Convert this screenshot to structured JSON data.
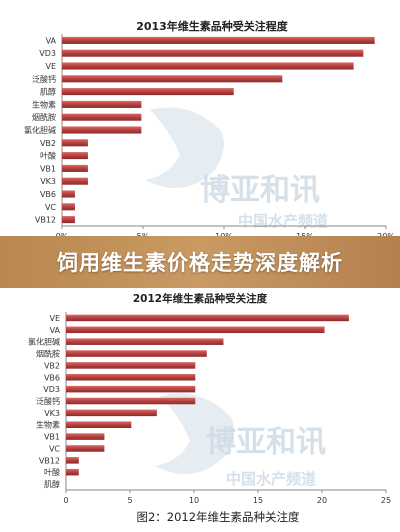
{
  "banner": {
    "title": "饲用维生素价格走势深度解析"
  },
  "watermark": {
    "brand_text": "博亚和讯",
    "site_text": "中国水产频道"
  },
  "chart_data": [
    {
      "type": "bar",
      "orientation": "horizontal",
      "title": "2013年维生素品种受关注程度",
      "caption": "",
      "categories": [
        "VA",
        "VD3",
        "VE",
        "泛酸钙",
        "肌醇",
        "生物素",
        "烟酰胺",
        "氯化胆碱",
        "VB2",
        "叶酸",
        "VB1",
        "VK3",
        "VB6",
        "VC",
        "VB12"
      ],
      "values": [
        19.3,
        18.6,
        18.0,
        13.6,
        10.6,
        4.9,
        4.9,
        4.9,
        1.6,
        1.6,
        1.6,
        1.6,
        0.8,
        0.8,
        0.8
      ],
      "xlim": [
        0,
        20
      ],
      "xticks": [
        "0%",
        "5%",
        "10%",
        "15%",
        "20%"
      ],
      "bar_color": "#b5403f",
      "legend": "none"
    },
    {
      "type": "bar",
      "orientation": "horizontal",
      "title": "2012年维生素品种受关注度",
      "caption": "图2：2012年维生素品种关注度",
      "categories": [
        "VE",
        "VA",
        "氯化胆碱",
        "烟酰胺",
        "VB2",
        "VB6",
        "VD3",
        "泛酸钙",
        "VK3",
        "生物素",
        "VB1",
        "VC",
        "VB12",
        "叶酸",
        "肌醇"
      ],
      "values": [
        22.1,
        20.2,
        12.3,
        11.0,
        10.1,
        10.1,
        10.1,
        10.1,
        7.1,
        5.1,
        3.0,
        3.0,
        1.0,
        1.0,
        0.0
      ],
      "xlim": [
        0,
        25
      ],
      "xticks": [
        "0",
        "5",
        "10",
        "15",
        "20",
        "25"
      ],
      "bar_color": "#b5403f",
      "legend": "none"
    }
  ]
}
